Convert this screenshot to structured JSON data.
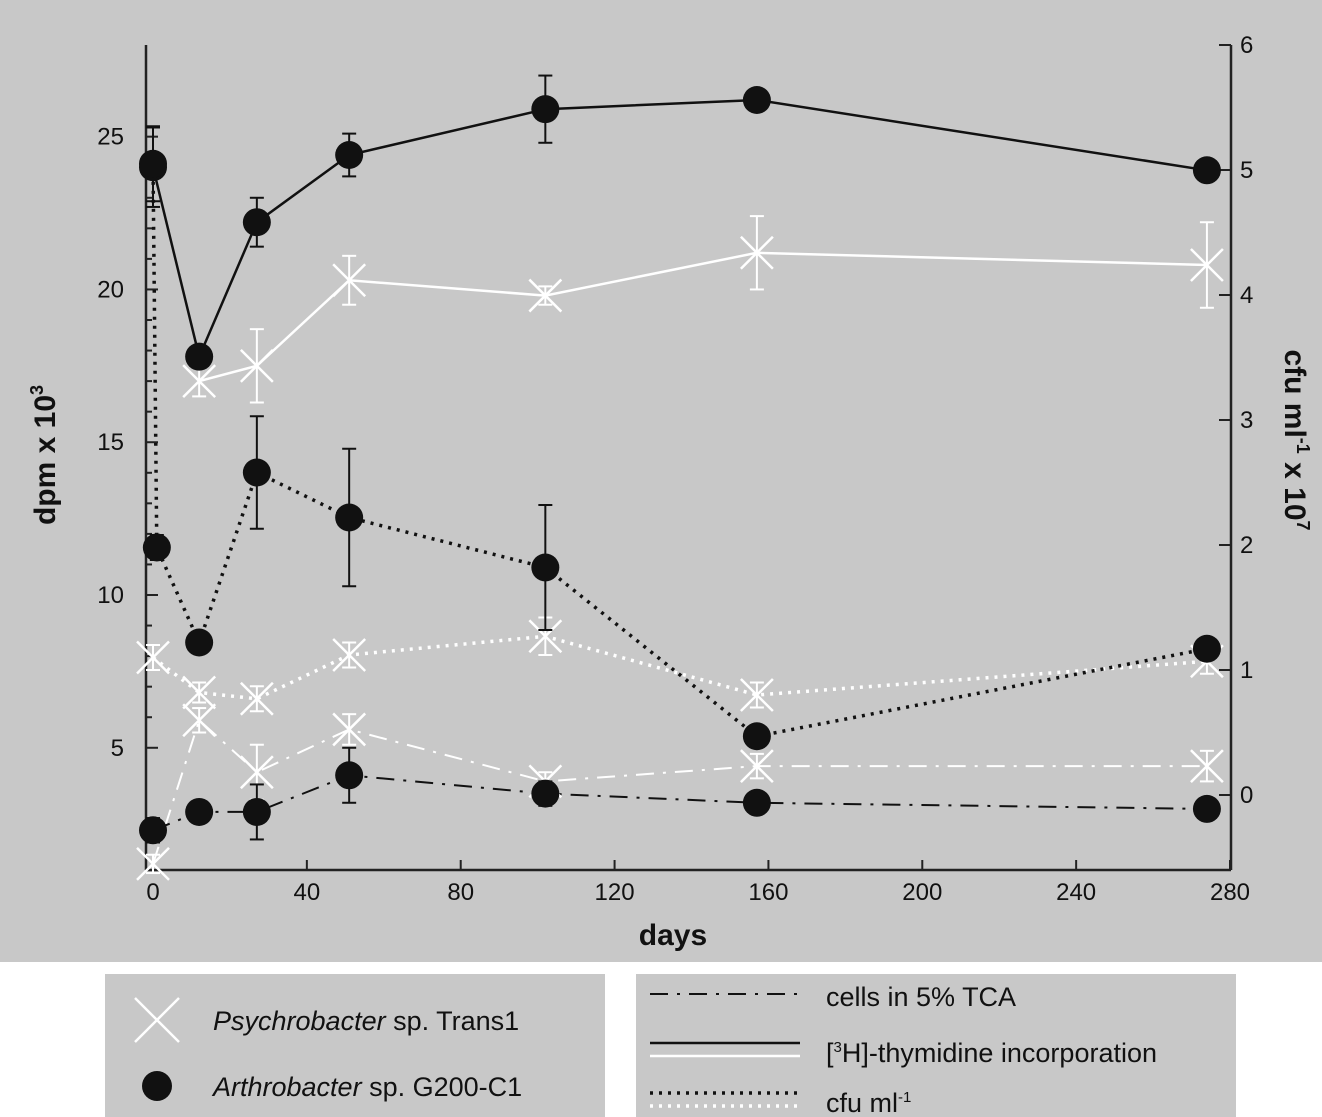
{
  "chart_data": {
    "type": "line",
    "xlabel": "days",
    "ylabel_left": "dpm x 10",
    "ylabel_left_sup": "3",
    "ylabel_right": "cfu ml",
    "ylabel_right_sup1": "-1",
    "ylabel_right_mid": " x 10",
    "ylabel_right_sup2": "7",
    "xlim": [
      0,
      280
    ],
    "ylim_left": [
      1,
      28
    ],
    "ylim_right": [
      -0.6,
      6
    ],
    "xticks": [
      0,
      40,
      80,
      120,
      160,
      200,
      240,
      280
    ],
    "yticks_left": [
      5,
      10,
      15,
      20,
      25
    ],
    "yticks_right": [
      0,
      1,
      2,
      3,
      4,
      5,
      6
    ],
    "colors": {
      "arthrobacter": "#111111",
      "psychrobacter": "#ffffff",
      "background": "#c8c8c8"
    },
    "series": [
      {
        "organism": "Arthrobacter sp. G200-C1",
        "measure": "[3H]-thymidine incorporation",
        "axis": "left",
        "line": "solid",
        "marker": "circle",
        "x": [
          0,
          12,
          27,
          51,
          102,
          157,
          274
        ],
        "y": [
          24.0,
          17.8,
          22.2,
          24.4,
          25.9,
          26.2,
          23.9
        ],
        "err": [
          1.3,
          0.3,
          0.8,
          0.7,
          1.1,
          0.3,
          0.3
        ]
      },
      {
        "organism": "Psychrobacter sp. Trans1",
        "measure": "[3H]-thymidine incorporation",
        "axis": "left",
        "line": "solid",
        "marker": "x",
        "x": [
          12,
          27,
          51,
          102,
          157,
          274
        ],
        "y": [
          17.0,
          17.5,
          20.3,
          19.8,
          21.2,
          20.8
        ],
        "err": [
          0.5,
          1.2,
          0.8,
          0.3,
          1.2,
          1.4
        ]
      },
      {
        "organism": "Arthrobacter sp. G200-C1",
        "measure": "cfu ml-1",
        "axis": "right",
        "line": "dotted",
        "marker": "circle",
        "x": [
          0,
          1,
          12,
          27,
          51,
          102,
          157,
          274
        ],
        "y": [
          5.05,
          1.98,
          1.22,
          2.58,
          2.22,
          1.82,
          0.47,
          1.17
        ],
        "err": [
          0.3,
          0.1,
          0.05,
          0.45,
          0.55,
          0.5,
          0.08,
          0.05
        ]
      },
      {
        "organism": "Psychrobacter sp. Trans1",
        "measure": "cfu ml-1",
        "axis": "right",
        "line": "dotted",
        "marker": "x",
        "x": [
          0,
          12,
          27,
          51,
          102,
          157,
          274
        ],
        "y": [
          1.1,
          0.82,
          0.77,
          1.12,
          1.27,
          0.8,
          1.07
        ],
        "err": [
          0.1,
          0.08,
          0.1,
          0.1,
          0.15,
          0.1,
          0.1
        ]
      },
      {
        "organism": "Arthrobacter sp. G200-C1",
        "measure": "cells in 5% TCA",
        "axis": "left",
        "line": "dashdot",
        "marker": "circle",
        "x": [
          0,
          12,
          27,
          51,
          102,
          157,
          274
        ],
        "y": [
          2.3,
          2.9,
          2.9,
          4.1,
          3.5,
          3.2,
          3.0
        ],
        "err": [
          0.4,
          0.2,
          0.9,
          0.9,
          0.4,
          0.2,
          0.2
        ]
      },
      {
        "organism": "Psychrobacter sp. Trans1",
        "measure": "cells in 5% TCA",
        "axis": "left",
        "line": "dashdot",
        "marker": "x",
        "x": [
          0,
          12,
          27,
          51,
          102,
          157,
          274
        ],
        "y": [
          1.2,
          5.9,
          4.2,
          5.6,
          3.9,
          4.4,
          4.4
        ],
        "err": [
          0.3,
          0.4,
          0.9,
          0.5,
          0.3,
          0.4,
          0.5
        ]
      }
    ]
  },
  "legend_markers": [
    {
      "name": "Psychrobacter",
      "suffix": " sp. Trans1",
      "marker": "x"
    },
    {
      "name": "Arthrobacter",
      "suffix": " sp. G200-C1",
      "marker": "circle"
    }
  ],
  "legend_lines": [
    {
      "pre": "cells in 5% TCA",
      "sup": "",
      "post": "",
      "style": "dashdot"
    },
    {
      "pre": "[",
      "sup": "3",
      "post": "H]-thymidine incorporation",
      "style": "solid"
    },
    {
      "pre": "cfu ml",
      "sup": "-1",
      "post": "",
      "style": "dotted"
    }
  ]
}
